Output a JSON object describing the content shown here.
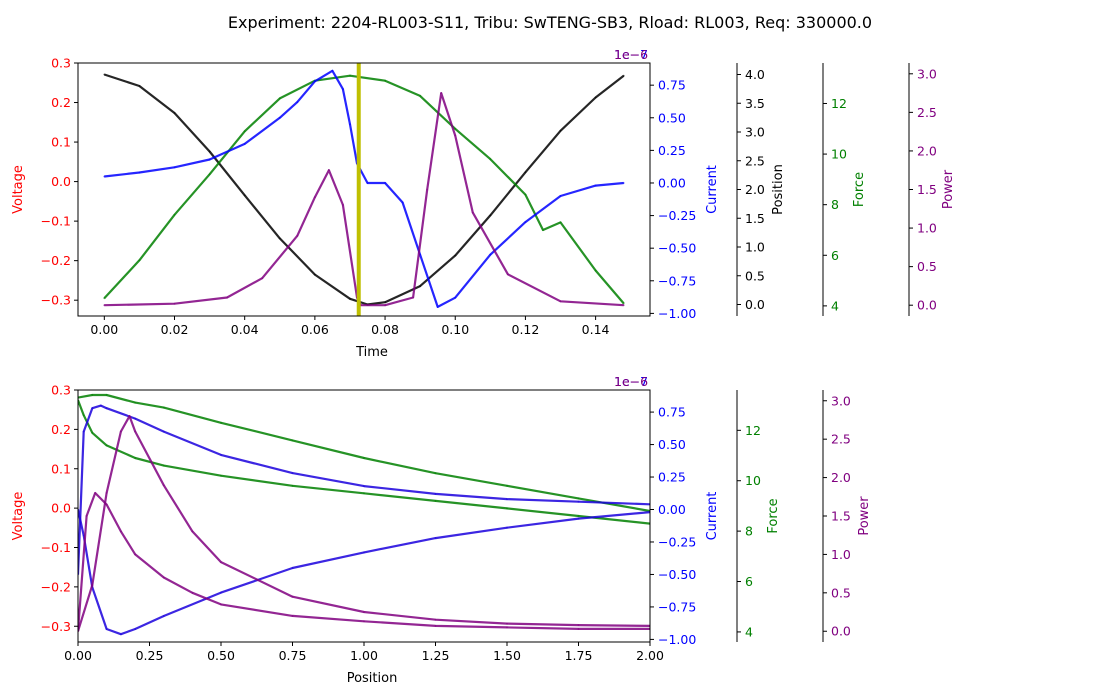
{
  "title": "Experiment: 2204-RL003-S11, Tribu: SwTENG-SB3, Rload: RL003, Req: 330000.0",
  "colors": {
    "voltage": "#ff0000",
    "current": "#0000ff",
    "position": "#000000",
    "force": "#008000",
    "power": "#800080",
    "marker": "#bfbf00"
  },
  "chart_data": [
    {
      "type": "line",
      "xlabel": "Time",
      "xlim": [
        -0.0075,
        0.1555
      ],
      "x_ticks": [
        "0.00",
        "0.02",
        "0.04",
        "0.06",
        "0.08",
        "0.10",
        "0.12",
        "0.14"
      ],
      "x_tick_values": [
        0.0,
        0.02,
        0.04,
        0.06,
        0.08,
        0.1,
        0.12,
        0.14
      ],
      "vertical_marker_x": 0.0725,
      "axes": [
        {
          "label": "Voltage",
          "color": "#ff0000",
          "side": "left",
          "range": [
            -0.34,
            0.3
          ],
          "ticks": [
            "−0.3",
            "−0.2",
            "−0.1",
            "0.0",
            "0.1",
            "0.2",
            "0.3"
          ],
          "tick_values": [
            -0.3,
            -0.2,
            -0.1,
            0.0,
            0.1,
            0.2,
            0.3
          ]
        },
        {
          "label": "Current",
          "color": "#0000ff",
          "side": "right",
          "range": [
            -1.02,
            0.92
          ],
          "offset_text": "1e−7",
          "ticks": [
            "−1.00",
            "−0.75",
            "−0.50",
            "−0.25",
            "0.00",
            "0.25",
            "0.50",
            "0.75"
          ],
          "tick_values": [
            -1.0,
            -0.75,
            -0.5,
            -0.25,
            0.0,
            0.25,
            0.5,
            0.75
          ]
        },
        {
          "label": "Position",
          "color": "#000000",
          "side": "right",
          "range": [
            -0.2,
            4.2
          ],
          "ticks": [
            "0.0",
            "0.5",
            "1.0",
            "1.5",
            "2.0",
            "2.5",
            "3.0",
            "3.5",
            "4.0"
          ],
          "tick_values": [
            0,
            0.5,
            1,
            1.5,
            2,
            2.5,
            3,
            3.5,
            4
          ]
        },
        {
          "label": "Force",
          "color": "#008000",
          "side": "right",
          "range": [
            3.6,
            13.6
          ],
          "ticks": [
            "4",
            "6",
            "8",
            "10",
            "12"
          ],
          "tick_values": [
            4,
            6,
            8,
            10,
            12
          ]
        },
        {
          "label": "Power",
          "color": "#800080",
          "side": "right",
          "range": [
            -0.14,
            3.14
          ],
          "offset_text": "1e−6",
          "ticks": [
            "0.0",
            "0.5",
            "1.0",
            "1.5",
            "2.0",
            "2.5",
            "3.0"
          ],
          "tick_values": [
            0,
            0.5,
            1,
            1.5,
            2,
            2.5,
            3
          ]
        }
      ],
      "series": [
        {
          "axis": "Position",
          "color": "#000000",
          "x": [
            0.0,
            0.01,
            0.02,
            0.03,
            0.04,
            0.05,
            0.06,
            0.07,
            0.075,
            0.08,
            0.09,
            0.1,
            0.11,
            0.12,
            0.13,
            0.14,
            0.148
          ],
          "y": [
            4.0,
            3.8,
            3.33,
            2.66,
            1.9,
            1.15,
            0.52,
            0.1,
            0.0,
            0.04,
            0.32,
            0.85,
            1.55,
            2.3,
            3.02,
            3.6,
            3.98
          ]
        },
        {
          "axis": "Force",
          "color": "#008000",
          "x": [
            0.0,
            0.01,
            0.02,
            0.03,
            0.04,
            0.05,
            0.06,
            0.07,
            0.08,
            0.09,
            0.1,
            0.11,
            0.12,
            0.125,
            0.13,
            0.14,
            0.148
          ],
          "y": [
            4.3,
            5.8,
            7.6,
            9.2,
            10.9,
            12.2,
            12.9,
            13.1,
            12.9,
            12.3,
            11.0,
            9.8,
            8.4,
            7.0,
            7.3,
            5.4,
            4.1
          ]
        },
        {
          "axis": "Current",
          "color": "#0000ff",
          "x": [
            0.0,
            0.01,
            0.02,
            0.03,
            0.04,
            0.05,
            0.055,
            0.06,
            0.065,
            0.068,
            0.07,
            0.072,
            0.075,
            0.08,
            0.085,
            0.09,
            0.095,
            0.1,
            0.11,
            0.12,
            0.13,
            0.14,
            0.148
          ],
          "y": [
            0.05,
            0.08,
            0.12,
            0.18,
            0.3,
            0.5,
            0.62,
            0.78,
            0.86,
            0.72,
            0.45,
            0.15,
            0.0,
            0.0,
            -0.15,
            -0.55,
            -0.95,
            -0.88,
            -0.55,
            -0.3,
            -0.1,
            -0.02,
            0.0
          ]
        },
        {
          "axis": "Power",
          "color": "#800080",
          "x": [
            0.0,
            0.02,
            0.035,
            0.045,
            0.055,
            0.06,
            0.064,
            0.068,
            0.072,
            0.073,
            0.08,
            0.088,
            0.092,
            0.096,
            0.1,
            0.105,
            0.115,
            0.13,
            0.148
          ],
          "y": [
            0.0,
            0.02,
            0.1,
            0.35,
            0.9,
            1.4,
            1.75,
            1.3,
            0.1,
            0.0,
            0.0,
            0.1,
            1.5,
            2.75,
            2.2,
            1.2,
            0.4,
            0.05,
            0.0
          ]
        }
      ]
    },
    {
      "type": "line",
      "xlabel": "Position",
      "xlim": [
        0.0,
        2.0
      ],
      "x_ticks": [
        "0.00",
        "0.25",
        "0.50",
        "0.75",
        "1.00",
        "1.25",
        "1.50",
        "1.75",
        "2.00"
      ],
      "x_tick_values": [
        0.0,
        0.25,
        0.5,
        0.75,
        1.0,
        1.25,
        1.5,
        1.75,
        2.0
      ],
      "axes": [
        {
          "label": "Voltage",
          "color": "#ff0000",
          "side": "left",
          "range": [
            -0.34,
            0.3
          ],
          "ticks": [
            "−0.3",
            "−0.2",
            "−0.1",
            "0.0",
            "0.1",
            "0.2",
            "0.3"
          ],
          "tick_values": [
            -0.3,
            -0.2,
            -0.1,
            0.0,
            0.1,
            0.2,
            0.3
          ]
        },
        {
          "label": "Current",
          "color": "#0000ff",
          "side": "right",
          "range": [
            -1.02,
            0.92
          ],
          "offset_text": "1e−7",
          "ticks": [
            "−1.00",
            "−0.75",
            "−0.50",
            "−0.25",
            "0.00",
            "0.25",
            "0.50",
            "0.75"
          ],
          "tick_values": [
            -1.0,
            -0.75,
            -0.5,
            -0.25,
            0.0,
            0.25,
            0.5,
            0.75
          ]
        },
        {
          "label": "Force",
          "color": "#008000",
          "side": "right",
          "range": [
            3.6,
            13.6
          ],
          "ticks": [
            "4",
            "6",
            "8",
            "10",
            "12"
          ],
          "tick_values": [
            4,
            6,
            8,
            10,
            12
          ]
        },
        {
          "label": "Power",
          "color": "#800080",
          "side": "right",
          "range": [
            -0.14,
            3.14
          ],
          "offset_text": "1e−6",
          "ticks": [
            "0.0",
            "0.5",
            "1.0",
            "1.5",
            "2.0",
            "2.5",
            "3.0"
          ],
          "tick_values": [
            0,
            0.5,
            1,
            1.5,
            2,
            2.5,
            3
          ]
        }
      ],
      "series": [
        {
          "axis": "Force",
          "color": "#008000",
          "x": [
            0.0,
            0.05,
            0.1,
            0.2,
            0.3,
            0.5,
            0.75,
            1.0,
            1.25,
            1.5,
            1.75,
            2.0
          ],
          "y": [
            13.3,
            13.4,
            13.4,
            13.1,
            12.9,
            12.3,
            11.6,
            10.9,
            10.3,
            9.8,
            9.3,
            8.8
          ]
        },
        {
          "axis": "Force",
          "color": "#008000",
          "x": [
            0.0,
            0.02,
            0.05,
            0.1,
            0.2,
            0.3,
            0.5,
            0.75,
            1.0,
            1.25,
            1.5,
            1.75,
            2.0
          ],
          "y": [
            13.2,
            12.6,
            11.9,
            11.4,
            10.9,
            10.6,
            10.2,
            9.8,
            9.5,
            9.2,
            8.9,
            8.6,
            8.3
          ]
        },
        {
          "axis": "Current",
          "color": "#1a00dd",
          "x": [
            0.0,
            0.02,
            0.05,
            0.08,
            0.1,
            0.2,
            0.3,
            0.5,
            0.75,
            1.0,
            1.25,
            1.5,
            1.75,
            2.0
          ],
          "y": [
            -0.5,
            0.6,
            0.78,
            0.8,
            0.78,
            0.7,
            0.6,
            0.42,
            0.28,
            0.18,
            0.12,
            0.08,
            0.06,
            0.04
          ]
        },
        {
          "axis": "Current",
          "color": "#1a00dd",
          "x": [
            0.0,
            0.02,
            0.05,
            0.1,
            0.15,
            0.2,
            0.3,
            0.5,
            0.75,
            1.0,
            1.25,
            1.5,
            1.75,
            2.0
          ],
          "y": [
            0.0,
            -0.2,
            -0.6,
            -0.92,
            -0.96,
            -0.92,
            -0.82,
            -0.64,
            -0.45,
            -0.33,
            -0.22,
            -0.14,
            -0.07,
            -0.02
          ]
        },
        {
          "axis": "Power",
          "color": "#800080",
          "x": [
            0.0,
            0.03,
            0.06,
            0.1,
            0.15,
            0.2,
            0.3,
            0.4,
            0.5,
            0.75,
            1.0,
            1.25,
            1.5,
            1.75,
            2.0
          ],
          "y": [
            0.0,
            1.5,
            1.8,
            1.65,
            1.3,
            1.0,
            0.7,
            0.5,
            0.35,
            0.2,
            0.13,
            0.07,
            0.05,
            0.03,
            0.03
          ]
        },
        {
          "axis": "Power",
          "color": "#800080",
          "x": [
            0.0,
            0.05,
            0.1,
            0.15,
            0.18,
            0.2,
            0.3,
            0.4,
            0.5,
            0.75,
            1.0,
            1.25,
            1.5,
            1.75,
            2.0
          ],
          "y": [
            0.0,
            0.6,
            1.8,
            2.6,
            2.8,
            2.6,
            1.9,
            1.3,
            0.9,
            0.45,
            0.25,
            0.15,
            0.1,
            0.08,
            0.07
          ]
        }
      ]
    }
  ]
}
